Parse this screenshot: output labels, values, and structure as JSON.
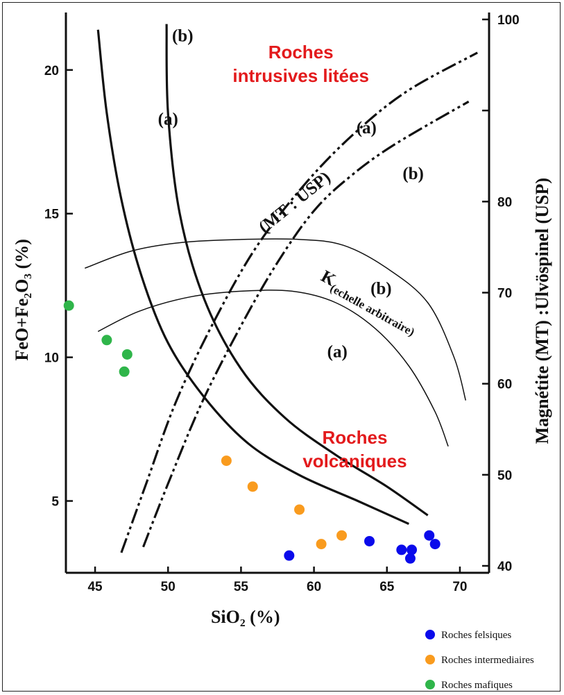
{
  "chart_data": {
    "type": "scatter",
    "xlabel": "SiO₂ (%)",
    "ylabel": "FeO+Fe₂O₃ (%)",
    "y2label": "Magnétite (MT) :Ulvöspinel (USP)",
    "xlim": [
      43,
      72
    ],
    "ylim": [
      2.5,
      22
    ],
    "y2lim": [
      40,
      100
    ],
    "x_ticks": [
      45,
      50,
      55,
      60,
      65,
      70
    ],
    "y_ticks": [
      5,
      10,
      15,
      20
    ],
    "y2_ticks": [
      40,
      50,
      60,
      70,
      80,
      100
    ],
    "regions": [
      {
        "lines": [
          "Roches",
          "intrusives litées"
        ],
        "x": 59.1,
        "y": 20.4
      },
      {
        "lines": [
          "Roches",
          "volcaniques"
        ],
        "x": 62.8,
        "y": 7.0
      }
    ],
    "curves": [
      {
        "label": "(a)",
        "style": "solid-thick",
        "points": [
          [
            45.2,
            21.4
          ],
          [
            45.8,
            18.5
          ],
          [
            46.8,
            15.5
          ],
          [
            48.2,
            12.8
          ],
          [
            50,
            10.5
          ],
          [
            52.5,
            8.6
          ],
          [
            55.5,
            7.0
          ],
          [
            59,
            5.9
          ],
          [
            63,
            5.0
          ],
          [
            66.5,
            4.2
          ]
        ],
        "label_pos": [
          50,
          18.1
        ]
      },
      {
        "label": "(b)",
        "style": "solid-thick",
        "points": [
          [
            49.9,
            21.6
          ],
          [
            50,
            18.5
          ],
          [
            50.8,
            15
          ],
          [
            52.5,
            12.0
          ],
          [
            55,
            9.6
          ],
          [
            58,
            7.9
          ],
          [
            61.5,
            6.6
          ],
          [
            65,
            5.5
          ],
          [
            67.8,
            4.5
          ]
        ],
        "label_pos": [
          51,
          21.0
        ]
      },
      {
        "label": "(a)",
        "style": "dash-dot",
        "points": [
          [
            46.8,
            3.2
          ],
          [
            48.5,
            5.6
          ],
          [
            50.5,
            8.4
          ],
          [
            53,
            11.1
          ],
          [
            56,
            13.8
          ],
          [
            59.5,
            16.1
          ],
          [
            63,
            17.9
          ],
          [
            66.5,
            19.3
          ],
          [
            71.2,
            20.6
          ]
        ],
        "label_pos": [
          63.6,
          17.8
        ]
      },
      {
        "label": "(b)",
        "style": "dash-dot",
        "points": [
          [
            48.3,
            3.4
          ],
          [
            50,
            5.6
          ],
          [
            52.3,
            8.4
          ],
          [
            55,
            11.1
          ],
          [
            57.5,
            13.3
          ],
          [
            60,
            15.1
          ],
          [
            62.5,
            16.3
          ],
          [
            65.5,
            17.4
          ],
          [
            70.6,
            18.9
          ]
        ],
        "label_pos": [
          66.8,
          16.2
        ]
      },
      {
        "label": "(b)",
        "style": "solid-thin",
        "points": [
          [
            44.3,
            13.1
          ],
          [
            47.5,
            13.7
          ],
          [
            51,
            14.0
          ],
          [
            55,
            14.1
          ],
          [
            59,
            14.1
          ],
          [
            62,
            13.9
          ],
          [
            65,
            13.1
          ],
          [
            67.8,
            11.9
          ],
          [
            69.6,
            10.0
          ],
          [
            70.4,
            8.5
          ]
        ],
        "label_pos": [
          64.6,
          12.2
        ]
      },
      {
        "label": "(a)",
        "style": "solid-thin",
        "points": [
          [
            45.2,
            10.9
          ],
          [
            48,
            11.6
          ],
          [
            51.5,
            12.1
          ],
          [
            55,
            12.3
          ],
          [
            58.5,
            12.3
          ],
          [
            61.5,
            11.9
          ],
          [
            64.2,
            11.0
          ],
          [
            66.5,
            9.7
          ],
          [
            68.3,
            8.1
          ],
          [
            69.2,
            6.9
          ]
        ],
        "label_pos": [
          61.6,
          10.0
        ]
      }
    ],
    "curve_labels_extra": [
      {
        "text": "(MT : USP)",
        "x": 56.6,
        "y": 14.3,
        "rotate": -39
      },
      {
        "text": "K",
        "text_sub": "(echelle arbitraire)",
        "x": 60.4,
        "y": 12.7,
        "rotate": 29
      }
    ],
    "series": [
      {
        "name": "Roches felsiques",
        "color": "#0a0aeb",
        "points": [
          [
            58.3,
            3.1
          ],
          [
            63.8,
            3.6
          ],
          [
            66,
            3.3
          ],
          [
            66.7,
            3.3
          ],
          [
            66.6,
            3.0
          ],
          [
            67.9,
            3.8
          ],
          [
            68.3,
            3.5
          ]
        ]
      },
      {
        "name": "Roches intermediaires",
        "color": "#f99b1e",
        "points": [
          [
            54,
            6.4
          ],
          [
            55.8,
            5.5
          ],
          [
            59,
            4.7
          ],
          [
            60.5,
            3.5
          ],
          [
            61.9,
            3.8
          ]
        ]
      },
      {
        "name": "Roches mafiques",
        "color": "#2fb54a",
        "points": [
          [
            43.2,
            11.8
          ],
          [
            45.8,
            10.6
          ],
          [
            47.2,
            10.1
          ],
          [
            47,
            9.5
          ]
        ]
      }
    ],
    "legend_placement": "bottom-right"
  }
}
